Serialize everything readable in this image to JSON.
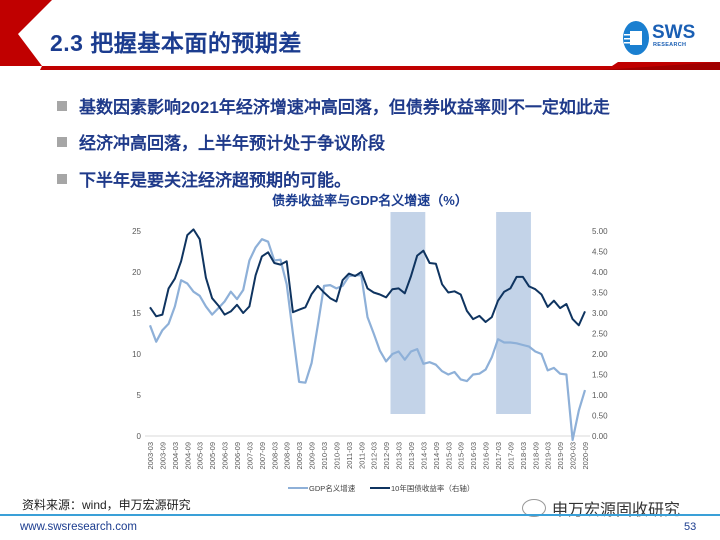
{
  "header": {
    "title": "2.3 把握基本面的预期差",
    "logo_text": "SWS",
    "logo_sub": "RESEARCH"
  },
  "bullets": [
    "基数因素影响2021年经济增速冲高回落，但债券收益率则不一定如此走",
    "经济冲高回落，上半年预计处于争议阶段",
    "下半年是要关注经济超预期的可能。"
  ],
  "chart_data": {
    "type": "line",
    "title": "债券收益率与GDP名义增速（%）",
    "x": [
      "2003-03",
      "2003-06",
      "2003-09",
      "2003-12",
      "2004-03",
      "2004-06",
      "2004-09",
      "2004-12",
      "2005-03",
      "2005-06",
      "2005-09",
      "2005-12",
      "2006-03",
      "2006-06",
      "2006-09",
      "2006-12",
      "2007-03",
      "2007-06",
      "2007-09",
      "2007-12",
      "2008-03",
      "2008-06",
      "2008-09",
      "2008-12",
      "2009-03",
      "2009-06",
      "2009-09",
      "2009-12",
      "2010-03",
      "2010-06",
      "2010-09",
      "2010-12",
      "2011-03",
      "2011-06",
      "2011-09",
      "2011-12",
      "2012-03",
      "2012-06",
      "2012-09",
      "2012-12",
      "2013-03",
      "2013-06",
      "2013-09",
      "2013-12",
      "2014-03",
      "2014-06",
      "2014-09",
      "2014-12",
      "2015-03",
      "2015-06",
      "2015-09",
      "2015-12",
      "2016-03",
      "2016-06",
      "2016-09",
      "2016-12",
      "2017-03",
      "2017-06",
      "2017-09",
      "2017-12",
      "2018-03",
      "2018-06",
      "2018-09",
      "2018-12",
      "2019-03",
      "2019-06",
      "2019-09",
      "2019-12",
      "2020-03",
      "2020-06",
      "2020-09"
    ],
    "series": [
      {
        "name": "GDP名义增速",
        "axis": "left",
        "color": "#8eb0d8",
        "values": [
          13.5,
          11.5,
          12.9,
          13.7,
          15.8,
          19.0,
          18.6,
          17.6,
          17.1,
          15.8,
          14.8,
          15.6,
          16.4,
          17.6,
          16.7,
          17.8,
          21.4,
          23.0,
          24.0,
          23.7,
          21.4,
          21.5,
          18.5,
          12.5,
          6.6,
          6.5,
          8.9,
          13.5,
          18.3,
          18.4,
          18.0,
          18.3,
          19.5,
          19.6,
          19.6,
          14.5,
          12.5,
          10.4,
          9.1,
          10.0,
          10.3,
          9.3,
          10.3,
          10.6,
          8.8,
          9.0,
          8.7,
          7.9,
          7.5,
          7.8,
          6.9,
          6.7,
          7.5,
          7.6,
          8.1,
          9.6,
          11.8,
          11.4,
          11.4,
          11.3,
          11.1,
          10.9,
          10.3,
          10.0,
          8.0,
          8.3,
          7.6,
          7.5,
          -5.3,
          3.1,
          5.6
        ]
      },
      {
        "name": "10年国债收益率（右轴）",
        "axis": "right",
        "color": "#0f3460",
        "values": [
          3.14,
          2.92,
          2.96,
          3.6,
          3.84,
          4.26,
          4.9,
          5.04,
          4.8,
          3.86,
          3.36,
          3.18,
          2.96,
          3.04,
          3.2,
          3.0,
          3.16,
          3.92,
          4.38,
          4.48,
          4.22,
          4.18,
          4.26,
          3.02,
          3.08,
          3.14,
          3.46,
          3.66,
          3.5,
          3.36,
          3.28,
          3.8,
          3.96,
          3.9,
          4.0,
          3.6,
          3.5,
          3.45,
          3.38,
          3.58,
          3.6,
          3.48,
          3.9,
          4.4,
          4.52,
          4.22,
          4.2,
          3.7,
          3.5,
          3.53,
          3.45,
          3.05,
          2.85,
          2.93,
          2.78,
          2.9,
          3.3,
          3.52,
          3.6,
          3.88,
          3.88,
          3.65,
          3.58,
          3.45,
          3.15,
          3.3,
          3.12,
          3.22,
          2.85,
          2.7,
          3.04
        ]
      }
    ],
    "shaded_periods": [
      [
        "2012-12",
        "2014-03"
      ],
      [
        "2017-03",
        "2018-06"
      ]
    ],
    "shade_color": "#c3d3e8",
    "y_left": {
      "lim": [
        0,
        25
      ],
      "ticks": [
        "0",
        "5",
        "10",
        "15",
        "20",
        "25"
      ]
    },
    "y_right": {
      "lim": [
        0,
        5
      ],
      "ticks": [
        "0.00",
        "0.50",
        "1.00",
        "1.50",
        "2.00",
        "2.50",
        "3.00",
        "3.50",
        "4.00",
        "4.50",
        "5.00"
      ]
    },
    "x_tick_suffixes": [
      "-03",
      "-09"
    ],
    "legend_position": "bottom",
    "grid": false
  },
  "footer": {
    "source": "资料来源：wind，申万宏源研究",
    "watermark": "申万宏源固收研究",
    "url": "www.swsresearch.com",
    "page": "53"
  }
}
